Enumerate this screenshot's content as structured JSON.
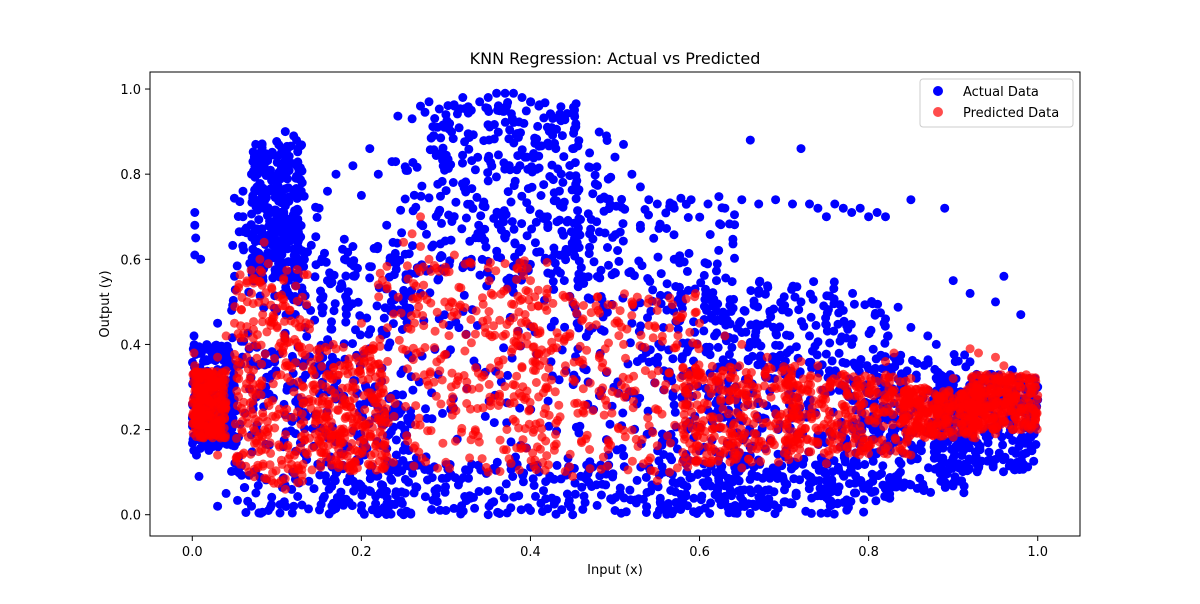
{
  "chart_data": {
    "type": "scatter",
    "title": "KNN Regression: Actual vs Predicted",
    "xlabel": "Input (x)",
    "ylabel": "Output (y)",
    "xlim": [
      -0.05,
      1.05
    ],
    "ylim": [
      -0.05,
      1.04
    ],
    "xticks": [
      0.0,
      0.2,
      0.4,
      0.6,
      0.8,
      1.0
    ],
    "xtick_labels": [
      "0.0",
      "0.2",
      "0.4",
      "0.6",
      "0.8",
      "1.0"
    ],
    "yticks": [
      0.0,
      0.2,
      0.4,
      0.6,
      0.8,
      1.0
    ],
    "ytick_labels": [
      "0.0",
      "0.2",
      "0.4",
      "0.6",
      "0.8",
      "1.0"
    ],
    "grid": false,
    "legend_position": "top-right",
    "series": [
      {
        "name": "Actual Data",
        "color": "#0000ff",
        "opacity": 1.0,
        "points": [
          [
            0.003,
            0.71
          ],
          [
            0.003,
            0.68
          ],
          [
            0.004,
            0.65
          ],
          [
            0.003,
            0.61
          ],
          [
            0.01,
            0.6
          ],
          [
            0.002,
            0.42
          ],
          [
            0.005,
            0.14
          ],
          [
            0.008,
            0.09
          ],
          [
            0.03,
            0.45
          ],
          [
            0.03,
            0.02
          ],
          [
            0.04,
            0.05
          ],
          [
            0.05,
            0.56
          ],
          [
            0.06,
            0.7
          ],
          [
            0.06,
            0.76
          ],
          [
            0.07,
            0.8
          ],
          [
            0.075,
            0.87
          ],
          [
            0.08,
            0.85
          ],
          [
            0.085,
            0.82
          ],
          [
            0.09,
            0.76
          ],
          [
            0.1,
            0.7
          ],
          [
            0.11,
            0.9
          ],
          [
            0.12,
            0.89
          ],
          [
            0.125,
            0.86
          ],
          [
            0.13,
            0.78
          ],
          [
            0.11,
            0.66
          ],
          [
            0.13,
            0.62
          ],
          [
            0.07,
            0.02
          ],
          [
            0.09,
            0.01
          ],
          [
            0.12,
            0.02
          ],
          [
            0.15,
            0.72
          ],
          [
            0.16,
            0.76
          ],
          [
            0.17,
            0.8
          ],
          [
            0.19,
            0.82
          ],
          [
            0.2,
            0.75
          ],
          [
            0.21,
            0.86
          ],
          [
            0.22,
            0.8
          ],
          [
            0.23,
            0.68
          ],
          [
            0.24,
            0.6
          ],
          [
            0.26,
            0.93
          ],
          [
            0.27,
            0.96
          ],
          [
            0.28,
            0.97
          ],
          [
            0.29,
            0.91
          ],
          [
            0.3,
            0.94
          ],
          [
            0.31,
            0.96
          ],
          [
            0.32,
            0.98
          ],
          [
            0.33,
            0.95
          ],
          [
            0.34,
            0.97
          ],
          [
            0.35,
            0.98
          ],
          [
            0.36,
            0.99
          ],
          [
            0.37,
            0.99
          ],
          [
            0.38,
            0.99
          ],
          [
            0.39,
            0.98
          ],
          [
            0.4,
            0.97
          ],
          [
            0.41,
            0.96
          ],
          [
            0.42,
            0.91
          ],
          [
            0.43,
            0.86
          ],
          [
            0.45,
            0.86
          ],
          [
            0.47,
            0.85
          ],
          [
            0.49,
            0.89
          ],
          [
            0.5,
            0.84
          ],
          [
            0.51,
            0.87
          ],
          [
            0.52,
            0.8
          ],
          [
            0.53,
            0.77
          ],
          [
            0.54,
            0.74
          ],
          [
            0.55,
            0.73
          ],
          [
            0.57,
            0.72
          ],
          [
            0.59,
            0.74
          ],
          [
            0.61,
            0.73
          ],
          [
            0.63,
            0.72
          ],
          [
            0.65,
            0.74
          ],
          [
            0.66,
            0.88
          ],
          [
            0.67,
            0.73
          ],
          [
            0.69,
            0.74
          ],
          [
            0.71,
            0.73
          ],
          [
            0.72,
            0.86
          ],
          [
            0.73,
            0.73
          ],
          [
            0.74,
            0.72
          ],
          [
            0.75,
            0.7
          ],
          [
            0.76,
            0.73
          ],
          [
            0.77,
            0.72
          ],
          [
            0.78,
            0.71
          ],
          [
            0.79,
            0.72
          ],
          [
            0.8,
            0.7
          ],
          [
            0.81,
            0.71
          ],
          [
            0.82,
            0.7
          ],
          [
            0.85,
            0.74
          ],
          [
            0.89,
            0.72
          ],
          [
            0.27,
            0.52
          ],
          [
            0.33,
            0.6
          ],
          [
            0.37,
            0.65
          ],
          [
            0.42,
            0.7
          ],
          [
            0.47,
            0.66
          ],
          [
            0.53,
            0.68
          ],
          [
            0.57,
            0.6
          ],
          [
            0.62,
            0.55
          ],
          [
            0.67,
            0.52
          ],
          [
            0.72,
            0.5
          ],
          [
            0.77,
            0.48
          ],
          [
            0.82,
            0.46
          ],
          [
            0.85,
            0.44
          ],
          [
            0.87,
            0.42
          ],
          [
            0.88,
            0.4
          ],
          [
            0.9,
            0.55
          ],
          [
            0.92,
            0.52
          ],
          [
            0.95,
            0.5
          ],
          [
            0.96,
            0.56
          ],
          [
            0.97,
            0.34
          ],
          [
            0.98,
            0.47
          ],
          [
            0.99,
            0.32
          ],
          [
            1.0,
            0.3
          ],
          [
            0.89,
            0.1
          ],
          [
            0.91,
            0.08
          ],
          [
            0.93,
            0.11
          ],
          [
            0.95,
            0.13
          ],
          [
            0.97,
            0.15
          ],
          [
            0.99,
            0.25
          ],
          [
            1.0,
            0.27
          ],
          [
            0.2,
            0.01
          ],
          [
            0.25,
            0.0
          ],
          [
            0.3,
            0.01
          ],
          [
            0.35,
            0.0
          ],
          [
            0.4,
            0.01
          ],
          [
            0.45,
            0.0
          ],
          [
            0.5,
            0.01
          ],
          [
            0.55,
            0.0
          ],
          [
            0.6,
            0.01
          ],
          [
            0.65,
            0.02
          ],
          [
            0.7,
            0.03
          ],
          [
            0.75,
            0.04
          ],
          [
            0.8,
            0.06
          ],
          [
            0.85,
            0.07
          ],
          [
            0.16,
            0.55
          ],
          [
            0.18,
            0.6
          ],
          [
            0.19,
            0.63
          ],
          [
            0.14,
            0.48
          ],
          [
            0.44,
            0.55
          ],
          [
            0.52,
            0.45
          ],
          [
            0.58,
            0.5
          ],
          [
            0.63,
            0.42
          ],
          [
            0.68,
            0.45
          ],
          [
            0.73,
            0.42
          ],
          [
            0.78,
            0.4
          ],
          [
            0.83,
            0.37
          ],
          [
            0.84,
            0.3
          ]
        ],
        "clusters": [
          {
            "x": [
              0.045,
              0.155
            ],
            "y": [
              0.0,
              0.75
            ]
          },
          {
            "x": [
              0.07,
              0.13
            ],
            "y": [
              0.55,
              0.88
            ]
          },
          {
            "x": [
              0.15,
              0.26
            ],
            "y": [
              0.0,
              0.65
            ]
          },
          {
            "x": [
              0.23,
              0.5
            ],
            "y": [
              0.0,
              0.95
            ]
          },
          {
            "x": [
              0.28,
              0.46
            ],
            "y": [
              0.55,
              0.97
            ]
          },
          {
            "x": [
              0.45,
              0.65
            ],
            "y": [
              0.0,
              0.75
            ]
          },
          {
            "x": [
              0.55,
              0.78
            ],
            "y": [
              0.0,
              0.55
            ]
          },
          {
            "x": [
              0.62,
              0.84
            ],
            "y": [
              0.02,
              0.52
            ]
          },
          {
            "x": [
              0.78,
              0.92
            ],
            "y": [
              0.05,
              0.38
            ]
          },
          {
            "x": [
              0.88,
              1.0
            ],
            "y": [
              0.1,
              0.33
            ]
          },
          {
            "x": [
              0.0,
              0.05
            ],
            "y": [
              0.15,
              0.4
            ]
          },
          {
            "x": [
              0.16,
              0.8
            ],
            "y": [
              0.0,
              0.12
            ]
          }
        ]
      },
      {
        "name": "Predicted Data",
        "color": "#ff0000",
        "opacity": 0.7,
        "points": [
          [
            0.002,
            0.38
          ],
          [
            0.003,
            0.35
          ],
          [
            0.004,
            0.3
          ],
          [
            0.005,
            0.25
          ],
          [
            0.006,
            0.21
          ],
          [
            0.01,
            0.27
          ],
          [
            0.02,
            0.33
          ],
          [
            0.03,
            0.37
          ],
          [
            0.03,
            0.14
          ],
          [
            0.02,
            0.19
          ],
          [
            0.04,
            0.42
          ],
          [
            0.05,
            0.45
          ],
          [
            0.07,
            0.52
          ],
          [
            0.08,
            0.6
          ],
          [
            0.085,
            0.64
          ],
          [
            0.09,
            0.59
          ],
          [
            0.11,
            0.06
          ],
          [
            0.11,
            0.49
          ],
          [
            0.13,
            0.38
          ],
          [
            0.15,
            0.39
          ],
          [
            0.16,
            0.33
          ],
          [
            0.19,
            0.31
          ],
          [
            0.2,
            0.45
          ],
          [
            0.22,
            0.54
          ],
          [
            0.25,
            0.64
          ],
          [
            0.26,
            0.66
          ],
          [
            0.27,
            0.63
          ],
          [
            0.27,
            0.7
          ],
          [
            0.28,
            0.6
          ],
          [
            0.3,
            0.57
          ],
          [
            0.31,
            0.61
          ],
          [
            0.33,
            0.59
          ],
          [
            0.35,
            0.58
          ],
          [
            0.37,
            0.59
          ],
          [
            0.39,
            0.58
          ],
          [
            0.4,
            0.55
          ],
          [
            0.42,
            0.53
          ],
          [
            0.45,
            0.5
          ],
          [
            0.48,
            0.48
          ],
          [
            0.5,
            0.45
          ],
          [
            0.52,
            0.5
          ],
          [
            0.55,
            0.48
          ],
          [
            0.58,
            0.47
          ],
          [
            0.6,
            0.45
          ],
          [
            0.63,
            0.42
          ],
          [
            0.65,
            0.4
          ],
          [
            0.68,
            0.37
          ],
          [
            0.7,
            0.34
          ],
          [
            0.72,
            0.36
          ],
          [
            0.74,
            0.35
          ],
          [
            0.77,
            0.33
          ],
          [
            0.79,
            0.3
          ],
          [
            0.82,
            0.36
          ],
          [
            0.83,
            0.38
          ],
          [
            0.85,
            0.32
          ],
          [
            0.88,
            0.28
          ],
          [
            0.9,
            0.32
          ],
          [
            0.92,
            0.39
          ],
          [
            0.93,
            0.38
          ],
          [
            0.95,
            0.37
          ],
          [
            0.96,
            0.35
          ],
          [
            0.98,
            0.3
          ],
          [
            0.99,
            0.31
          ],
          [
            1.0,
            0.28
          ],
          [
            0.97,
            0.2
          ],
          [
            0.95,
            0.19
          ],
          [
            0.93,
            0.21
          ],
          [
            0.91,
            0.24
          ],
          [
            0.55,
            0.08
          ],
          [
            0.45,
            0.09
          ],
          [
            0.35,
            0.1
          ],
          [
            0.65,
            0.11
          ],
          [
            0.75,
            0.12
          ],
          [
            0.85,
            0.14
          ]
        ],
        "clusters": [
          {
            "x": [
              0.05,
              0.14
            ],
            "y": [
              0.07,
              0.58
            ]
          },
          {
            "x": [
              0.14,
              0.23
            ],
            "y": [
              0.1,
              0.4
            ]
          },
          {
            "x": [
              0.22,
              0.42
            ],
            "y": [
              0.1,
              0.6
            ]
          },
          {
            "x": [
              0.38,
              0.6
            ],
            "y": [
              0.1,
              0.52
            ]
          },
          {
            "x": [
              0.58,
              0.72
            ],
            "y": [
              0.12,
              0.35
            ]
          },
          {
            "x": [
              0.7,
              0.85
            ],
            "y": [
              0.14,
              0.33
            ]
          },
          {
            "x": [
              0.84,
              0.93
            ],
            "y": [
              0.18,
              0.3
            ]
          },
          {
            "x": [
              0.92,
              1.0
            ],
            "y": [
              0.2,
              0.33
            ]
          },
          {
            "x": [
              0.0,
              0.04
            ],
            "y": [
              0.18,
              0.34
            ]
          }
        ]
      }
    ]
  }
}
